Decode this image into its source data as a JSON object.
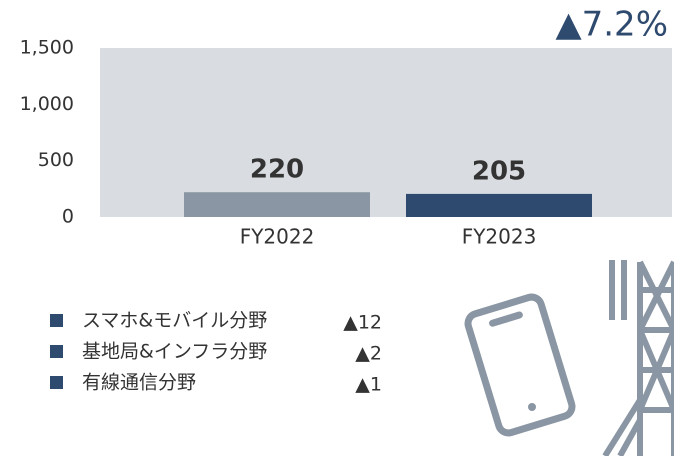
{
  "chart_data": {
    "type": "bar",
    "categories": [
      "FY2022",
      "FY2023"
    ],
    "values": [
      220,
      205
    ],
    "colors": [
      "#8a96a3",
      "#2e4a6e"
    ],
    "ylim": [
      0,
      1500
    ],
    "yticks": [
      0,
      500,
      {
        "value": 1000,
        "label": "1,000"
      },
      {
        "value": 1500,
        "label": "1,500"
      }
    ],
    "annotation": "▲7.2%",
    "breakdown": [
      {
        "label": "スマホ&モバイル分野",
        "change": "▲12"
      },
      {
        "label": "基地局&インフラ分野",
        "change": "▲2"
      },
      {
        "label": "有線通信分野",
        "change": "▲1"
      }
    ]
  }
}
